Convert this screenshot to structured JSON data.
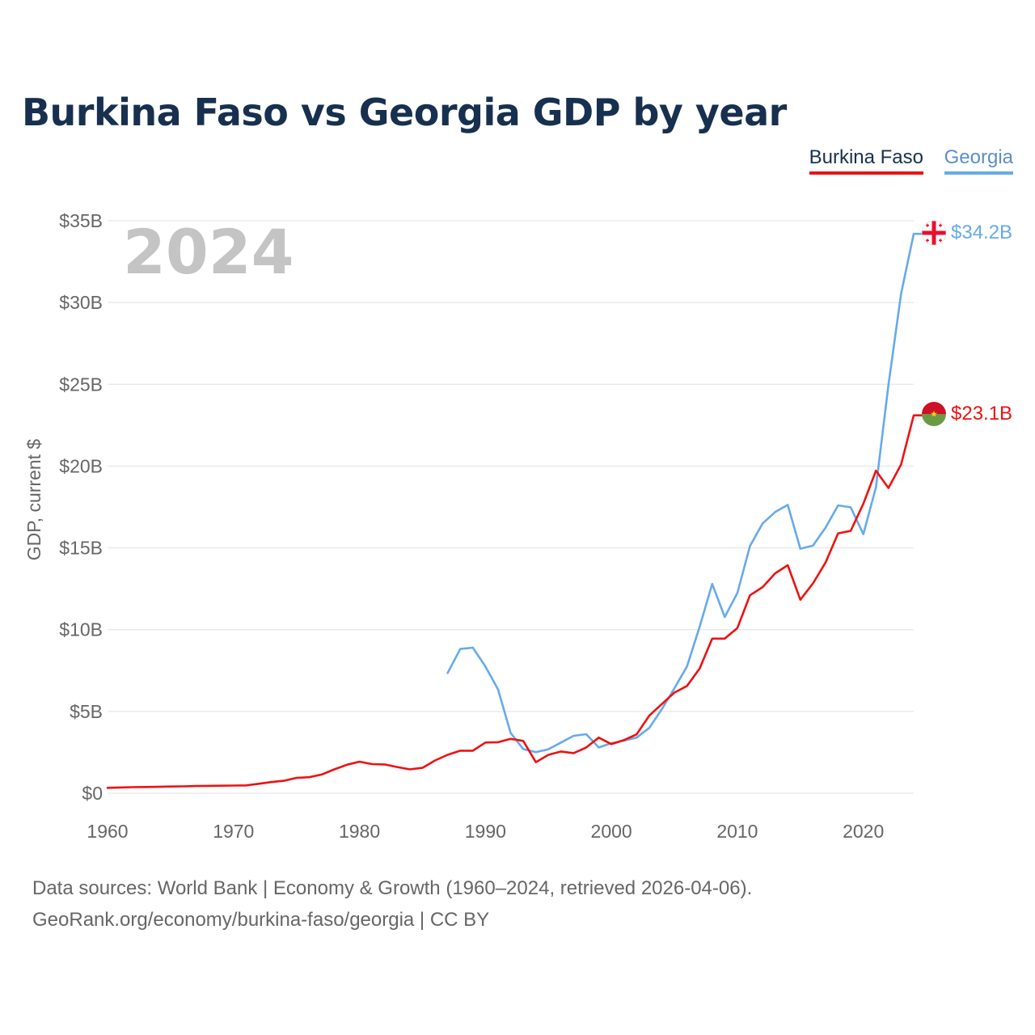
{
  "title": "Burkina Faso vs Georgia GDP by year",
  "legend": [
    {
      "name": "Burkina Faso",
      "color": "#ee1111"
    },
    {
      "name": "Georgia",
      "color": "#66aaea"
    }
  ],
  "year_overlay": "2024",
  "footer": {
    "source": "Data sources: World Bank | Economy & Growth (1960–2024, retrieved 2026-04-06).",
    "attribution": "GeoRank.org/economy/burkina-faso/georgia | CC BY"
  },
  "chart_data": {
    "type": "line",
    "title": "Burkina Faso vs Georgia GDP by year",
    "xlabel": "",
    "ylabel": "GDP, current $",
    "xlim": [
      1960,
      2024
    ],
    "ylim": [
      0,
      35
    ],
    "y_unit": "billion USD",
    "x_ticks": [
      1960,
      1970,
      1980,
      1990,
      2000,
      2010,
      2020
    ],
    "x_tick_labels": [
      "1960",
      "1970",
      "1980",
      "1990",
      "2000",
      "2010",
      "2020"
    ],
    "y_ticks": [
      0,
      5,
      10,
      15,
      20,
      25,
      30,
      35
    ],
    "y_tick_labels": [
      "$0",
      "$5B",
      "$10B",
      "$15B",
      "$20B",
      "$25B",
      "$30B",
      "$35B"
    ],
    "grid": true,
    "legend_position": "top-right",
    "series": [
      {
        "name": "Burkina Faso",
        "color": "#ee1111",
        "end_label": "$23.1B",
        "x": [
          1960,
          1961,
          1962,
          1963,
          1964,
          1965,
          1966,
          1967,
          1968,
          1969,
          1970,
          1971,
          1972,
          1973,
          1974,
          1975,
          1976,
          1977,
          1978,
          1979,
          1980,
          1981,
          1982,
          1983,
          1984,
          1985,
          1986,
          1987,
          1988,
          1989,
          1990,
          1991,
          1992,
          1993,
          1994,
          1995,
          1996,
          1997,
          1998,
          1999,
          2000,
          2001,
          2002,
          2003,
          2004,
          2005,
          2006,
          2007,
          2008,
          2009,
          2010,
          2011,
          2012,
          2013,
          2014,
          2015,
          2016,
          2017,
          2018,
          2019,
          2020,
          2021,
          2022,
          2023,
          2024
        ],
        "values": [
          0.33,
          0.35,
          0.37,
          0.38,
          0.39,
          0.41,
          0.42,
          0.44,
          0.45,
          0.46,
          0.47,
          0.48,
          0.58,
          0.68,
          0.76,
          0.94,
          0.98,
          1.14,
          1.46,
          1.74,
          1.93,
          1.78,
          1.76,
          1.6,
          1.46,
          1.55,
          2.0,
          2.35,
          2.6,
          2.6,
          3.1,
          3.12,
          3.32,
          3.2,
          1.9,
          2.35,
          2.55,
          2.45,
          2.8,
          3.4,
          3.0,
          3.25,
          3.6,
          4.74,
          5.45,
          6.15,
          6.56,
          7.62,
          9.45,
          9.45,
          10.1,
          12.1,
          12.6,
          13.44,
          13.94,
          11.83,
          12.83,
          14.11,
          15.89,
          16.04,
          17.7,
          19.72,
          18.66,
          20.1,
          23.1
        ]
      },
      {
        "name": "Georgia",
        "color": "#66aaea",
        "end_label": "$34.2B",
        "x": [
          1987,
          1988,
          1989,
          1990,
          1991,
          1992,
          1993,
          1994,
          1995,
          1996,
          1997,
          1998,
          1999,
          2000,
          2001,
          2002,
          2003,
          2004,
          2005,
          2006,
          2007,
          2008,
          2009,
          2010,
          2011,
          2012,
          2013,
          2014,
          2015,
          2016,
          2017,
          2018,
          2019,
          2020,
          2021,
          2022,
          2023,
          2024
        ],
        "values": [
          7.35,
          8.82,
          8.9,
          7.75,
          6.35,
          3.69,
          2.7,
          2.51,
          2.69,
          3.1,
          3.51,
          3.61,
          2.8,
          3.06,
          3.22,
          3.4,
          3.99,
          5.13,
          6.41,
          7.75,
          10.17,
          12.8,
          10.77,
          12.24,
          15.11,
          16.49,
          17.19,
          17.63,
          14.95,
          15.14,
          16.24,
          17.6,
          17.48,
          15.84,
          18.7,
          24.98,
          30.54,
          34.2
        ]
      }
    ]
  }
}
